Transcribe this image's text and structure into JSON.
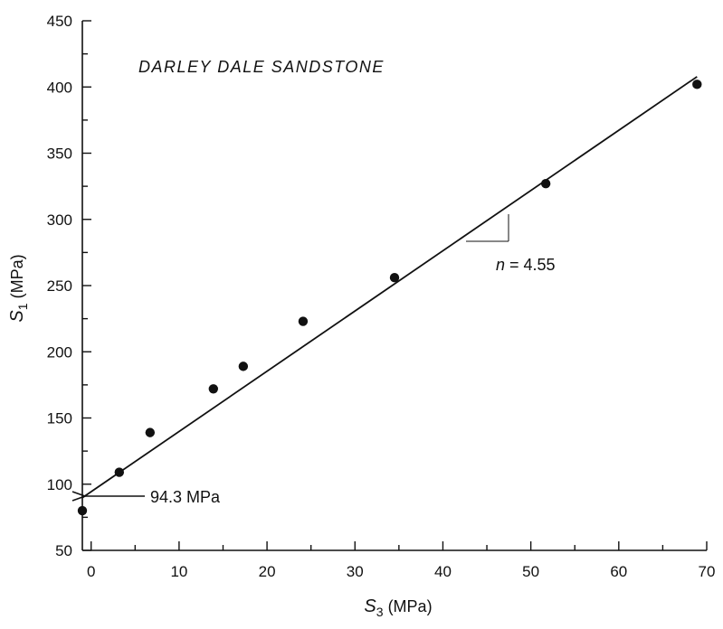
{
  "chart_data": {
    "type": "scatter",
    "title": "DARLEY DALE SANDSTONE",
    "xlabel": {
      "base": "S",
      "sub": "3",
      "unit": " (MPa)"
    },
    "ylabel": {
      "base": "S",
      "sub": "1",
      "unit": " (MPa)"
    },
    "xlim": [
      -1,
      70
    ],
    "ylim": [
      50,
      450
    ],
    "xticks": [
      0,
      10,
      20,
      30,
      40,
      50,
      60,
      70
    ],
    "yticks": [
      50,
      100,
      150,
      200,
      250,
      300,
      350,
      400,
      450
    ],
    "x_minor_step": 5,
    "y_minor_step": 25,
    "grid": false,
    "points": [
      {
        "x": -1,
        "y": 80
      },
      {
        "x": 3.2,
        "y": 109
      },
      {
        "x": 6.7,
        "y": 139
      },
      {
        "x": 13.9,
        "y": 172
      },
      {
        "x": 17.3,
        "y": 189
      },
      {
        "x": 24.1,
        "y": 223
      },
      {
        "x": 34.5,
        "y": 256
      },
      {
        "x": 51.7,
        "y": 327
      },
      {
        "x": 68.9,
        "y": 402
      }
    ],
    "fit_line": {
      "intercept": 94.3,
      "slope": 4.55,
      "x_start": -1,
      "x_end": 68.9
    },
    "annotations": {
      "intercept_label": "94.3 MPa",
      "slope_label": {
        "var": "n",
        "rest": " = 4.55"
      }
    }
  }
}
